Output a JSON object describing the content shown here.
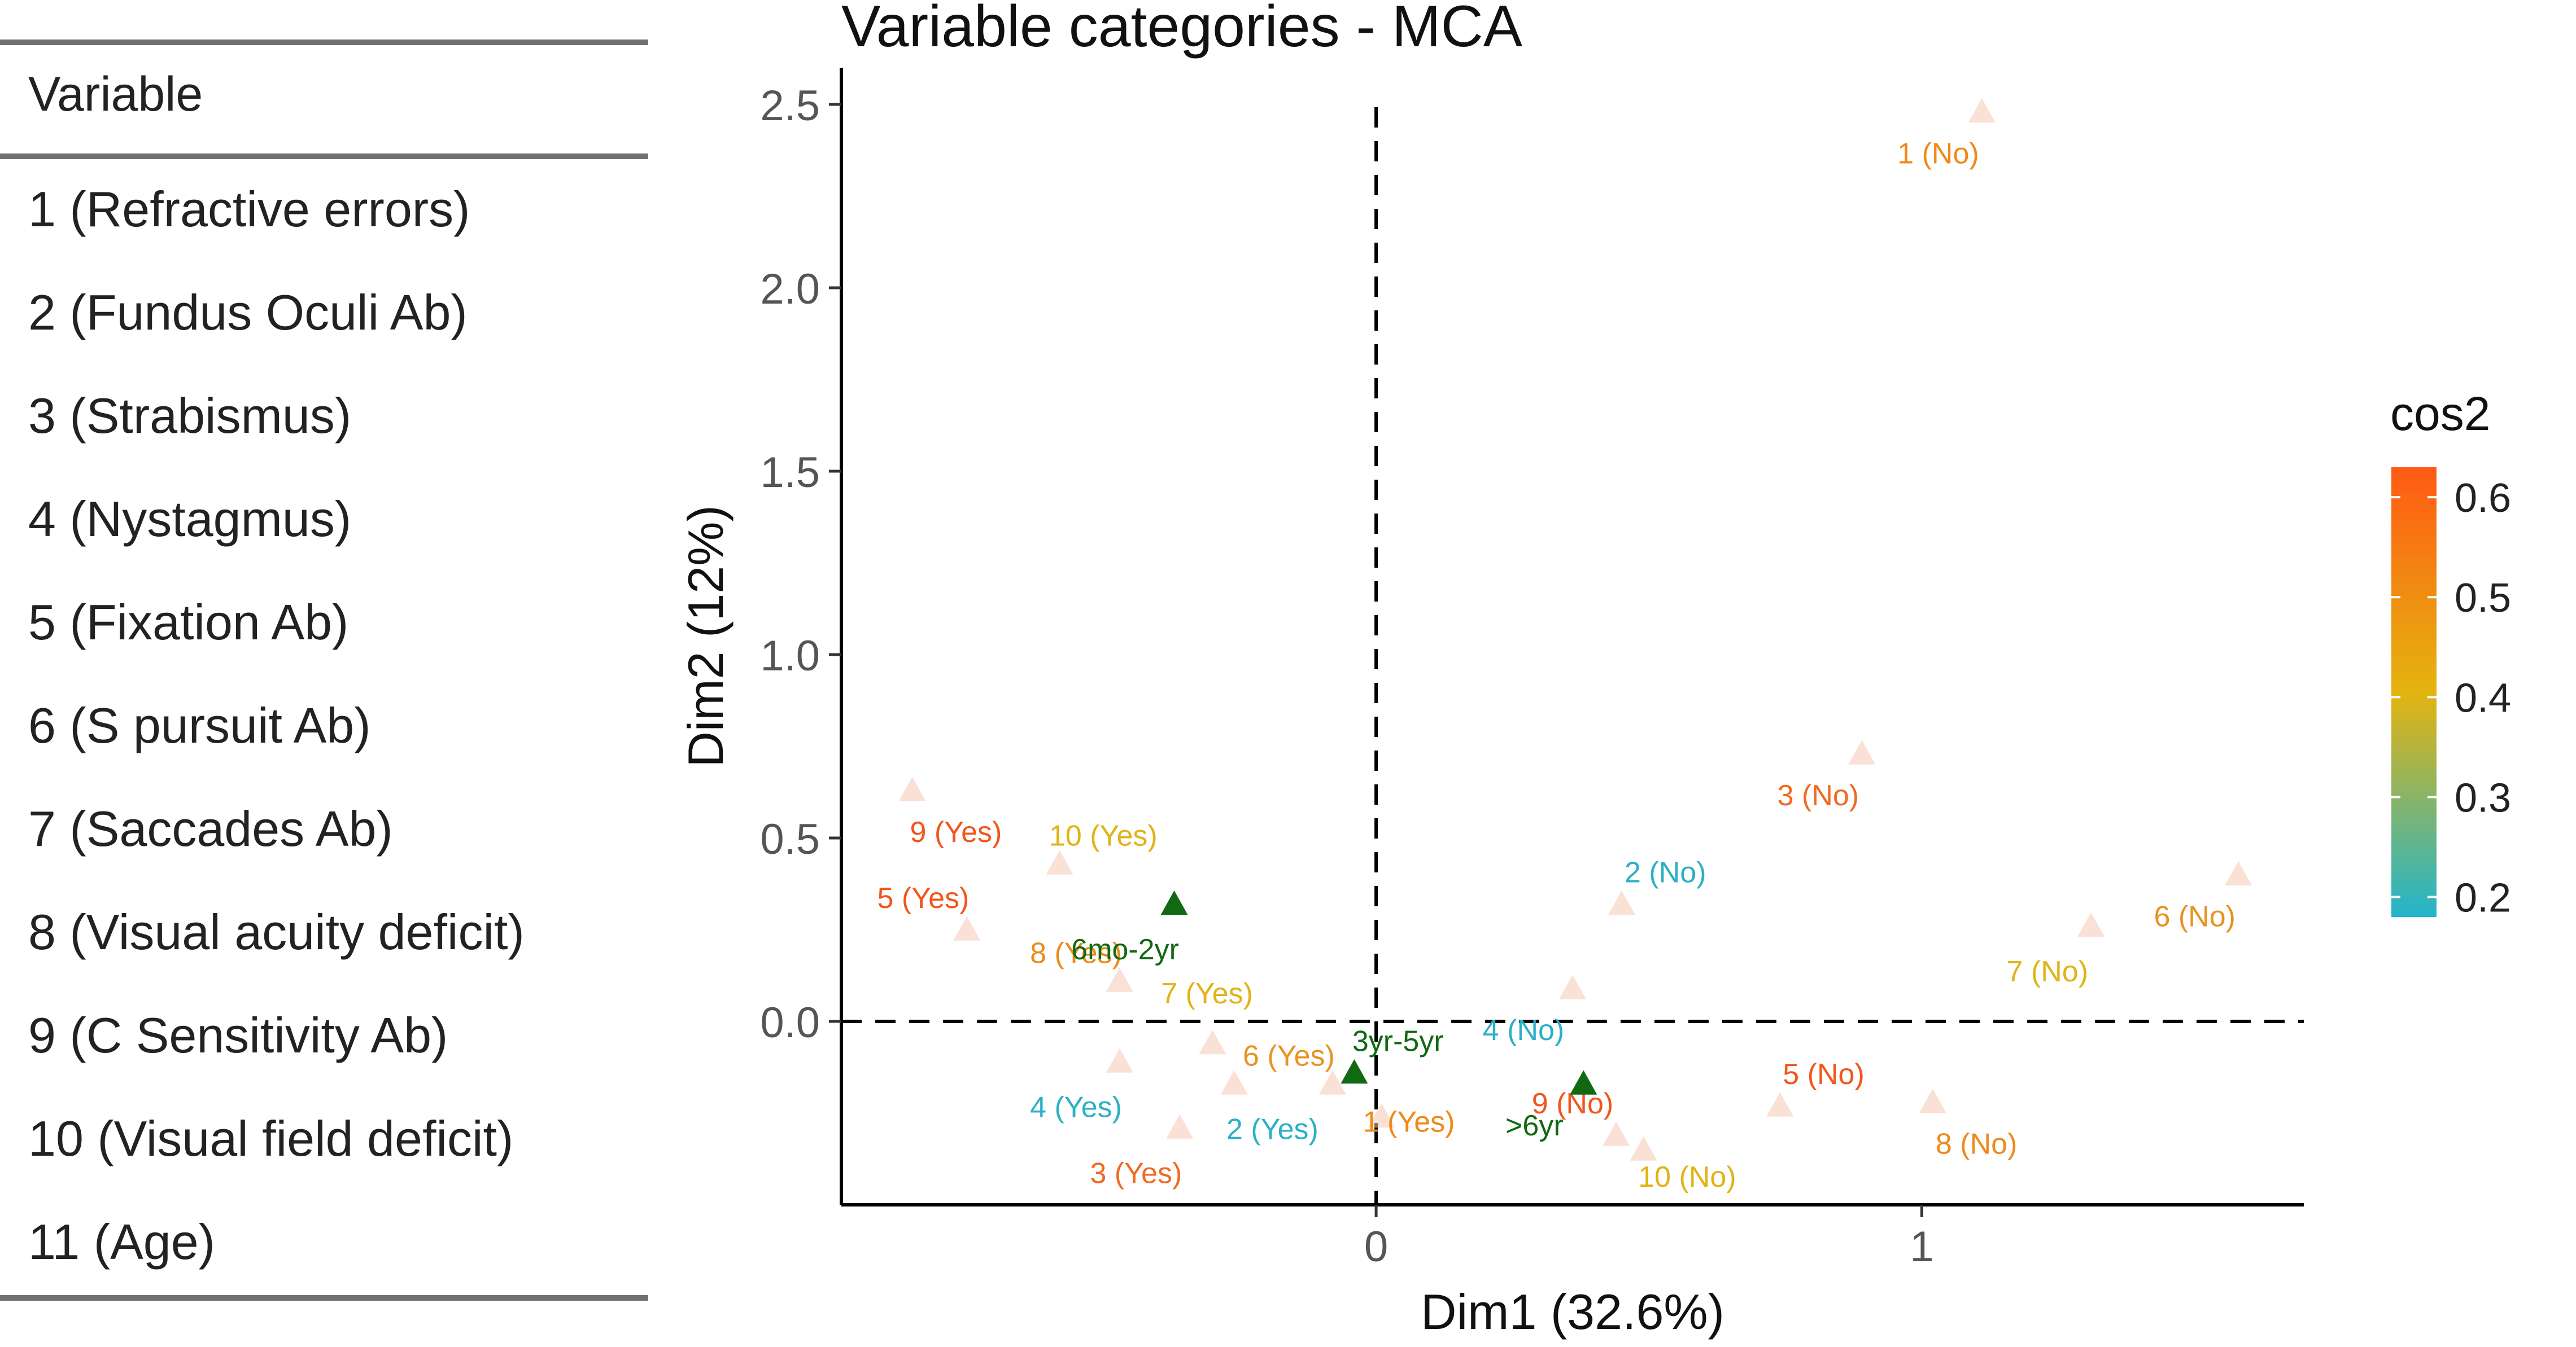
{
  "variable_table": {
    "header": "Variable",
    "rows": [
      "1 (Refractive errors)",
      "2 (Fundus Oculi Ab)",
      "3 (Strabismus)",
      "4 (Nystagmus)",
      "5 (Fixation Ab)",
      "6 (S pursuit Ab)",
      "7 (Saccades Ab)",
      "8 (Visual acuity deficit)",
      "9 (C Sensitivity Ab)",
      "10 (Visual field deficit)",
      "11 (Age)"
    ]
  },
  "chart_data": {
    "type": "scatter",
    "title": "Variable categories - MCA",
    "xlabel": "Dim1 (32.6%)",
    "ylabel": "Dim2 (12%)",
    "xlim": [
      -0.98,
      1.7
    ],
    "ylim": [
      -0.5,
      2.6
    ],
    "xticks": [
      0,
      1
    ],
    "xtick_labels": [
      "0",
      "1"
    ],
    "yticks": [
      0.0,
      0.5,
      1.0,
      1.5,
      2.0,
      2.5
    ],
    "ytick_labels": [
      "0.0",
      "0.5",
      "1.0",
      "1.5",
      "2.0",
      "2.5"
    ],
    "reference_lines": {
      "x": 0,
      "y": 0,
      "style": "dashed"
    },
    "legend": {
      "title": "cos2",
      "position": "right",
      "ticks": [
        0.2,
        0.3,
        0.4,
        0.5,
        0.6
      ],
      "tick_labels": [
        "0.2",
        "0.3",
        "0.4",
        "0.5",
        "0.6"
      ],
      "low_color": "#22b5cc",
      "high_color": "#ff5a14"
    },
    "points": [
      {
        "label": "1 (No)",
        "x": 1.11,
        "y": 2.48,
        "lx": 1.03,
        "ly": 2.37,
        "color": "#ee8a1a"
      },
      {
        "label": "3 (No)",
        "x": 0.89,
        "y": 0.73,
        "lx": 0.81,
        "ly": 0.62,
        "color": "#f06a20"
      },
      {
        "label": "2 (No)",
        "x": 0.45,
        "y": 0.32,
        "lx": 0.53,
        "ly": 0.41,
        "color": "#2bb0c6"
      },
      {
        "label": "6 (No)",
        "x": 1.58,
        "y": 0.4,
        "lx": 1.5,
        "ly": 0.29,
        "color": "#e89224"
      },
      {
        "label": "7 (No)",
        "x": 1.31,
        "y": 0.26,
        "lx": 1.23,
        "ly": 0.14,
        "color": "#e0b317"
      },
      {
        "label": "4 (No)",
        "x": 0.36,
        "y": 0.09,
        "lx": 0.27,
        "ly": -0.02,
        "color": "#2bb0c6"
      },
      {
        "label": "5 (No)",
        "x": 0.74,
        "y": -0.23,
        "lx": 0.82,
        "ly": -0.14,
        "color": "#f2551d"
      },
      {
        "label": "8 (No)",
        "x": 1.02,
        "y": -0.22,
        "lx": 1.1,
        "ly": -0.33,
        "color": "#ee8a1a"
      },
      {
        "label": "9 (No)",
        "x": 0.44,
        "y": -0.31,
        "lx": 0.36,
        "ly": -0.22,
        "color": "#f2551d"
      },
      {
        "label": "10 (No)",
        "x": 0.49,
        "y": -0.35,
        "lx": 0.57,
        "ly": -0.42,
        "color": "#e0b317"
      },
      {
        "label": "9 (Yes)",
        "x": -0.85,
        "y": 0.63,
        "lx": -0.77,
        "ly": 0.52,
        "color": "#f2551d"
      },
      {
        "label": "10 (Yes)",
        "x": -0.58,
        "y": 0.43,
        "lx": -0.5,
        "ly": 0.51,
        "color": "#e0b317"
      },
      {
        "label": "5 (Yes)",
        "x": -0.75,
        "y": 0.25,
        "lx": -0.83,
        "ly": 0.34,
        "color": "#f2551d"
      },
      {
        "label": "8 (Yes)",
        "x": -0.47,
        "y": 0.11,
        "lx": -0.55,
        "ly": 0.19,
        "color": "#ee8a1a"
      },
      {
        "label": "7 (Yes)",
        "x": -0.3,
        "y": -0.06,
        "lx": -0.31,
        "ly": 0.08,
        "color": "#e0b317"
      },
      {
        "label": "6 (Yes)",
        "x": -0.08,
        "y": -0.17,
        "lx": -0.16,
        "ly": -0.09,
        "color": "#e89224"
      },
      {
        "label": "4 (Yes)",
        "x": -0.47,
        "y": -0.11,
        "lx": -0.55,
        "ly": -0.23,
        "color": "#2bb0c6"
      },
      {
        "label": "2 (Yes)",
        "x": -0.26,
        "y": -0.17,
        "lx": -0.19,
        "ly": -0.29,
        "color": "#2bb0c6"
      },
      {
        "label": "3 (Yes)",
        "x": -0.36,
        "y": -0.29,
        "lx": -0.44,
        "ly": -0.41,
        "color": "#f06a20"
      },
      {
        "label": "1 (Yes)",
        "x": 0.01,
        "y": -0.26,
        "lx": 0.06,
        "ly": -0.27,
        "color": "#ee8a1a"
      }
    ],
    "supplementary": [
      {
        "label": "6mo-2yr",
        "x": -0.37,
        "y": 0.32,
        "lx": -0.46,
        "ly": 0.2,
        "color": "#116911"
      },
      {
        "label": "3yr-5yr",
        "x": -0.04,
        "y": -0.14,
        "lx": 0.04,
        "ly": -0.05,
        "color": "#116911"
      },
      {
        "label": ">6yr",
        "x": 0.38,
        "y": -0.17,
        "lx": 0.29,
        "ly": -0.28,
        "color": "#116911"
      }
    ]
  }
}
